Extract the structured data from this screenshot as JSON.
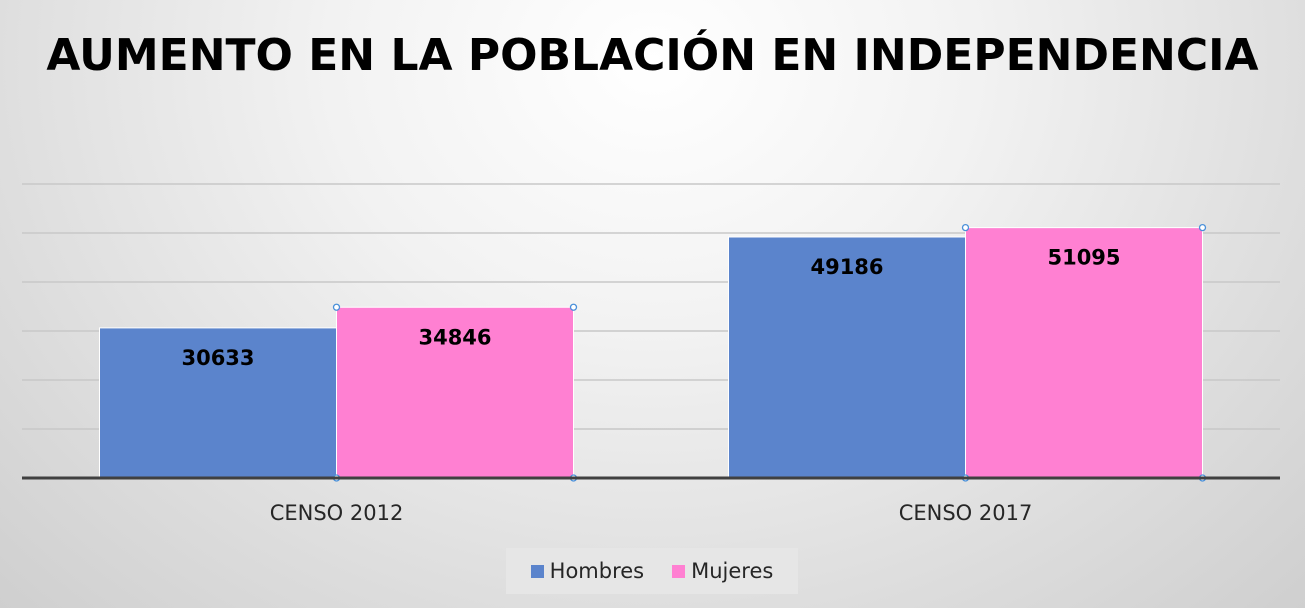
{
  "chart_data": {
    "type": "bar",
    "title": "AUMENTO EN LA POBLACIÓN EN INDEPENDENCIA",
    "categories": [
      "CENSO 2012",
      "CENSO 2017"
    ],
    "series": [
      {
        "name": "Hombres",
        "values": [
          30633,
          49186
        ],
        "color": "#5b84cc"
      },
      {
        "name": "Mujeres",
        "values": [
          34846,
          51095
        ],
        "color": "#ff80d2"
      }
    ],
    "ylim": [
      0,
      60000
    ],
    "grid": true,
    "legend_position": "bottom",
    "data_labels": true
  }
}
